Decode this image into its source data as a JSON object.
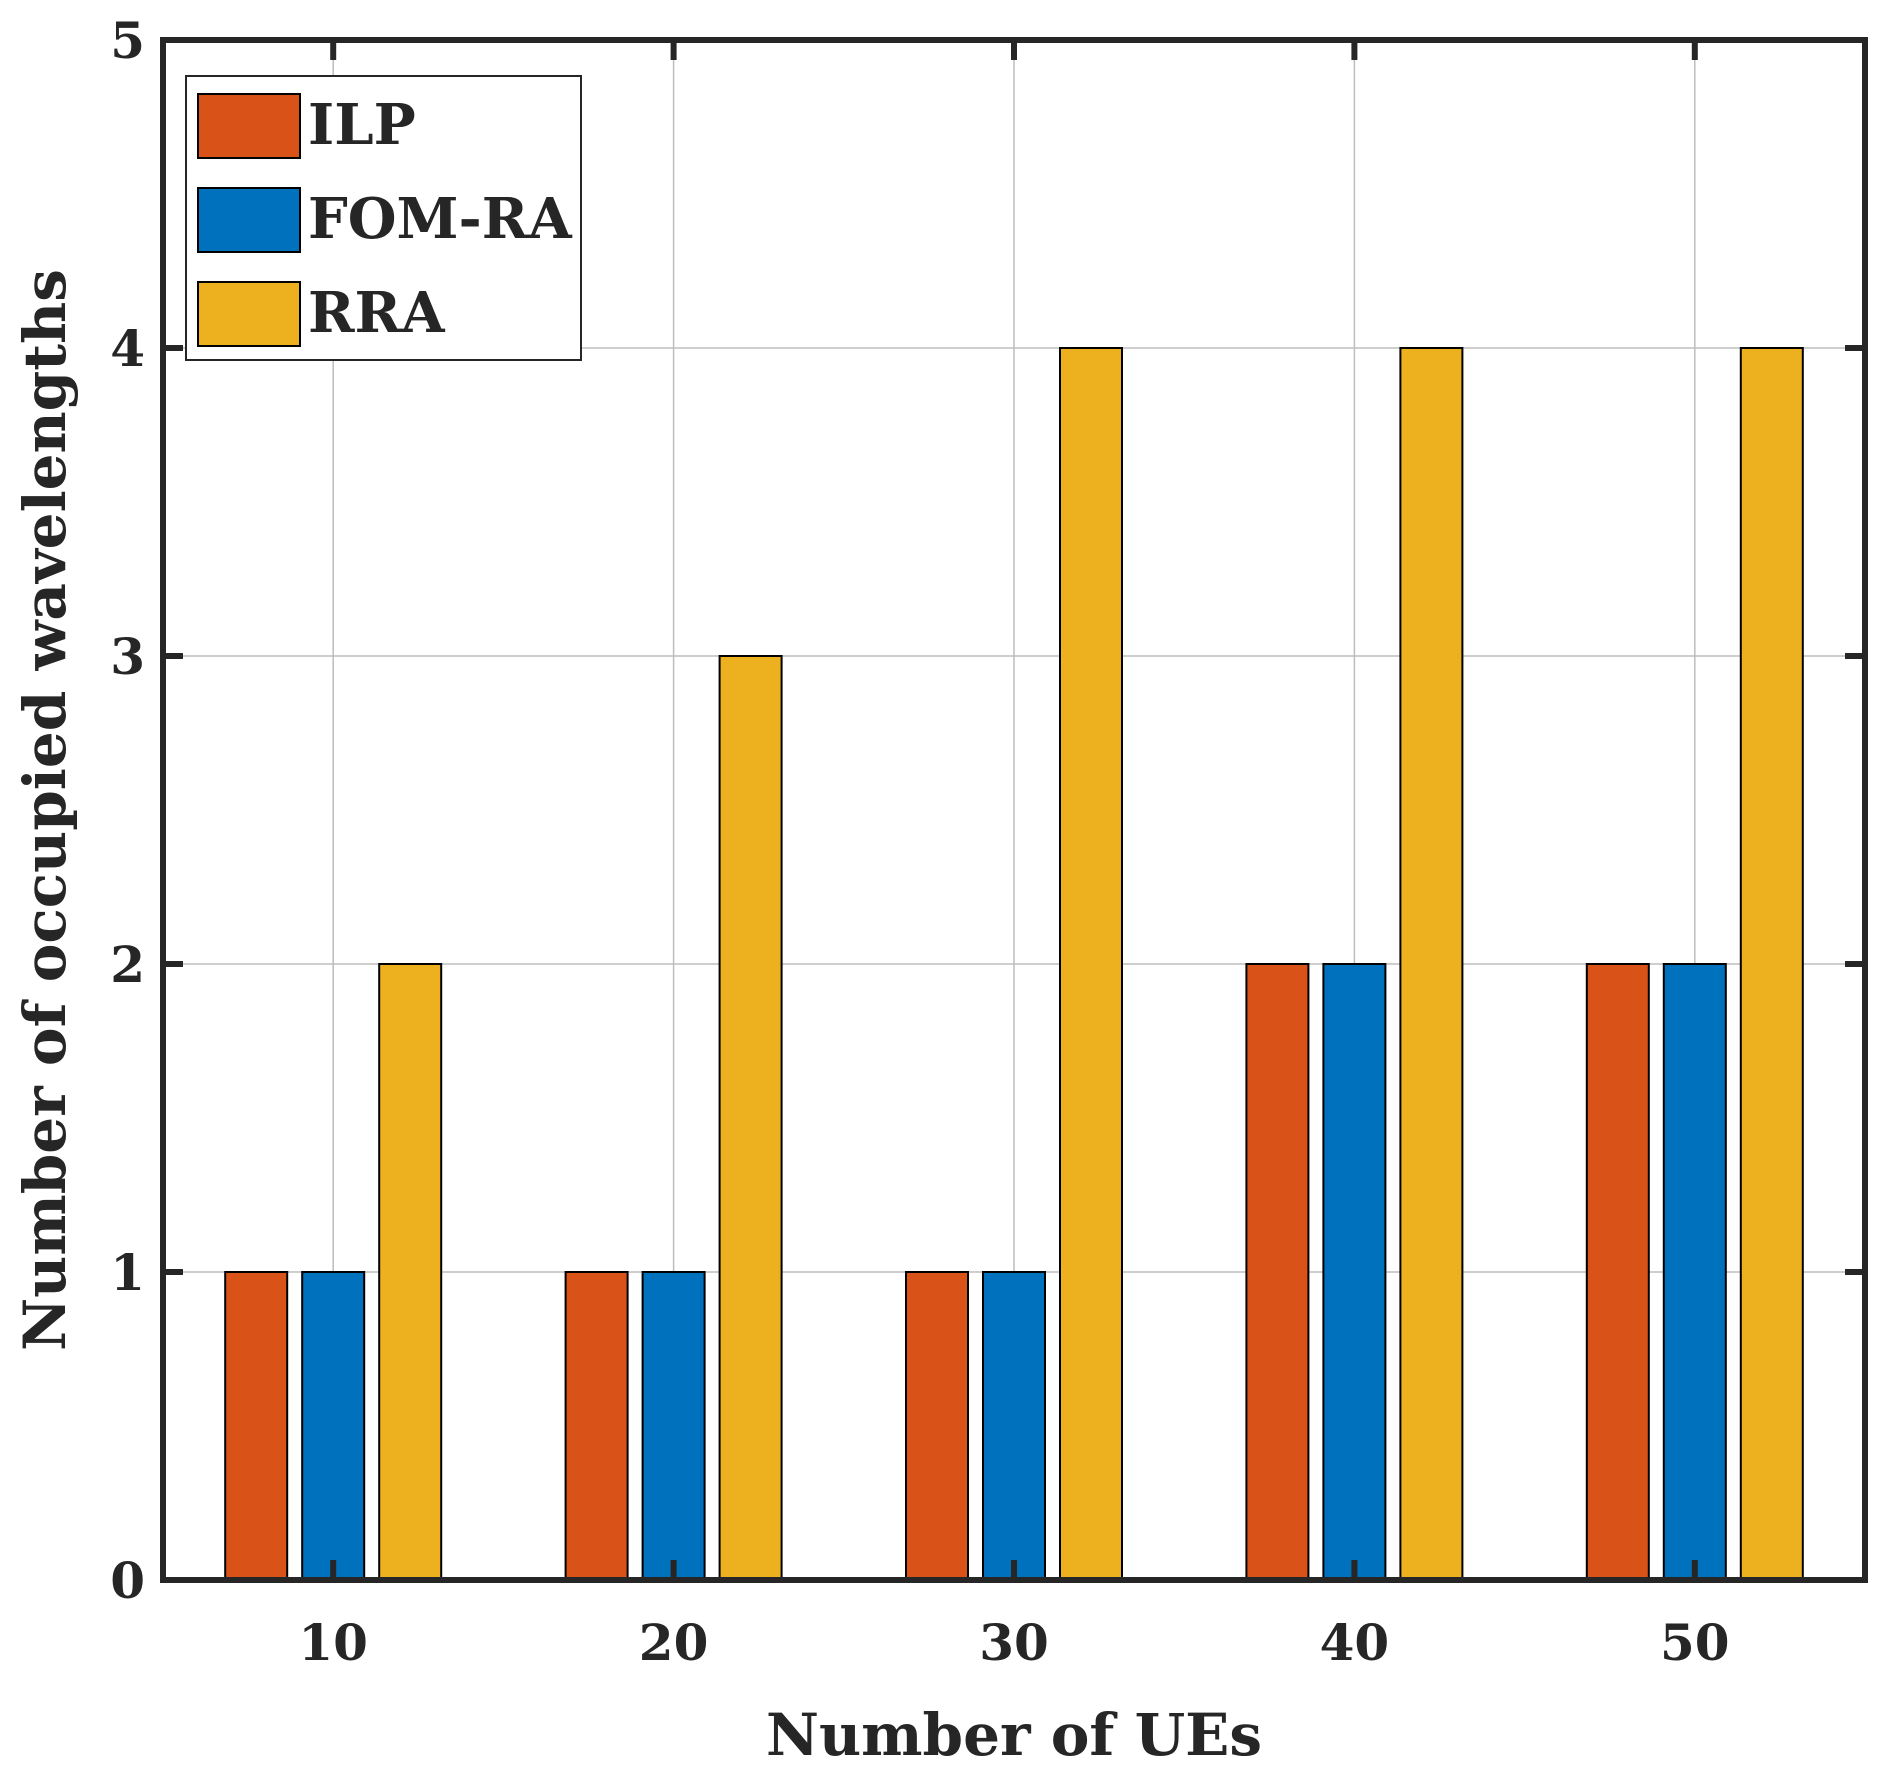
{
  "chart_data": {
    "type": "bar",
    "title": "",
    "xlabel": "Number of UEs",
    "ylabel": "Number of occupied wavelengths",
    "categories": [
      "10",
      "20",
      "30",
      "40",
      "50"
    ],
    "series": [
      {
        "name": "ILP",
        "color": "#D95319",
        "values": [
          1,
          1,
          1,
          2,
          2
        ]
      },
      {
        "name": "FOM-RA",
        "color": "#0072BD",
        "values": [
          1,
          1,
          1,
          2,
          2
        ]
      },
      {
        "name": "RRA",
        "color": "#EDB120",
        "values": [
          2,
          3,
          4,
          4,
          4
        ]
      }
    ],
    "ylim": [
      0,
      5
    ],
    "yticks": [
      0,
      1,
      2,
      3,
      4,
      5
    ],
    "grid": true,
    "legend_position": "top-left"
  }
}
